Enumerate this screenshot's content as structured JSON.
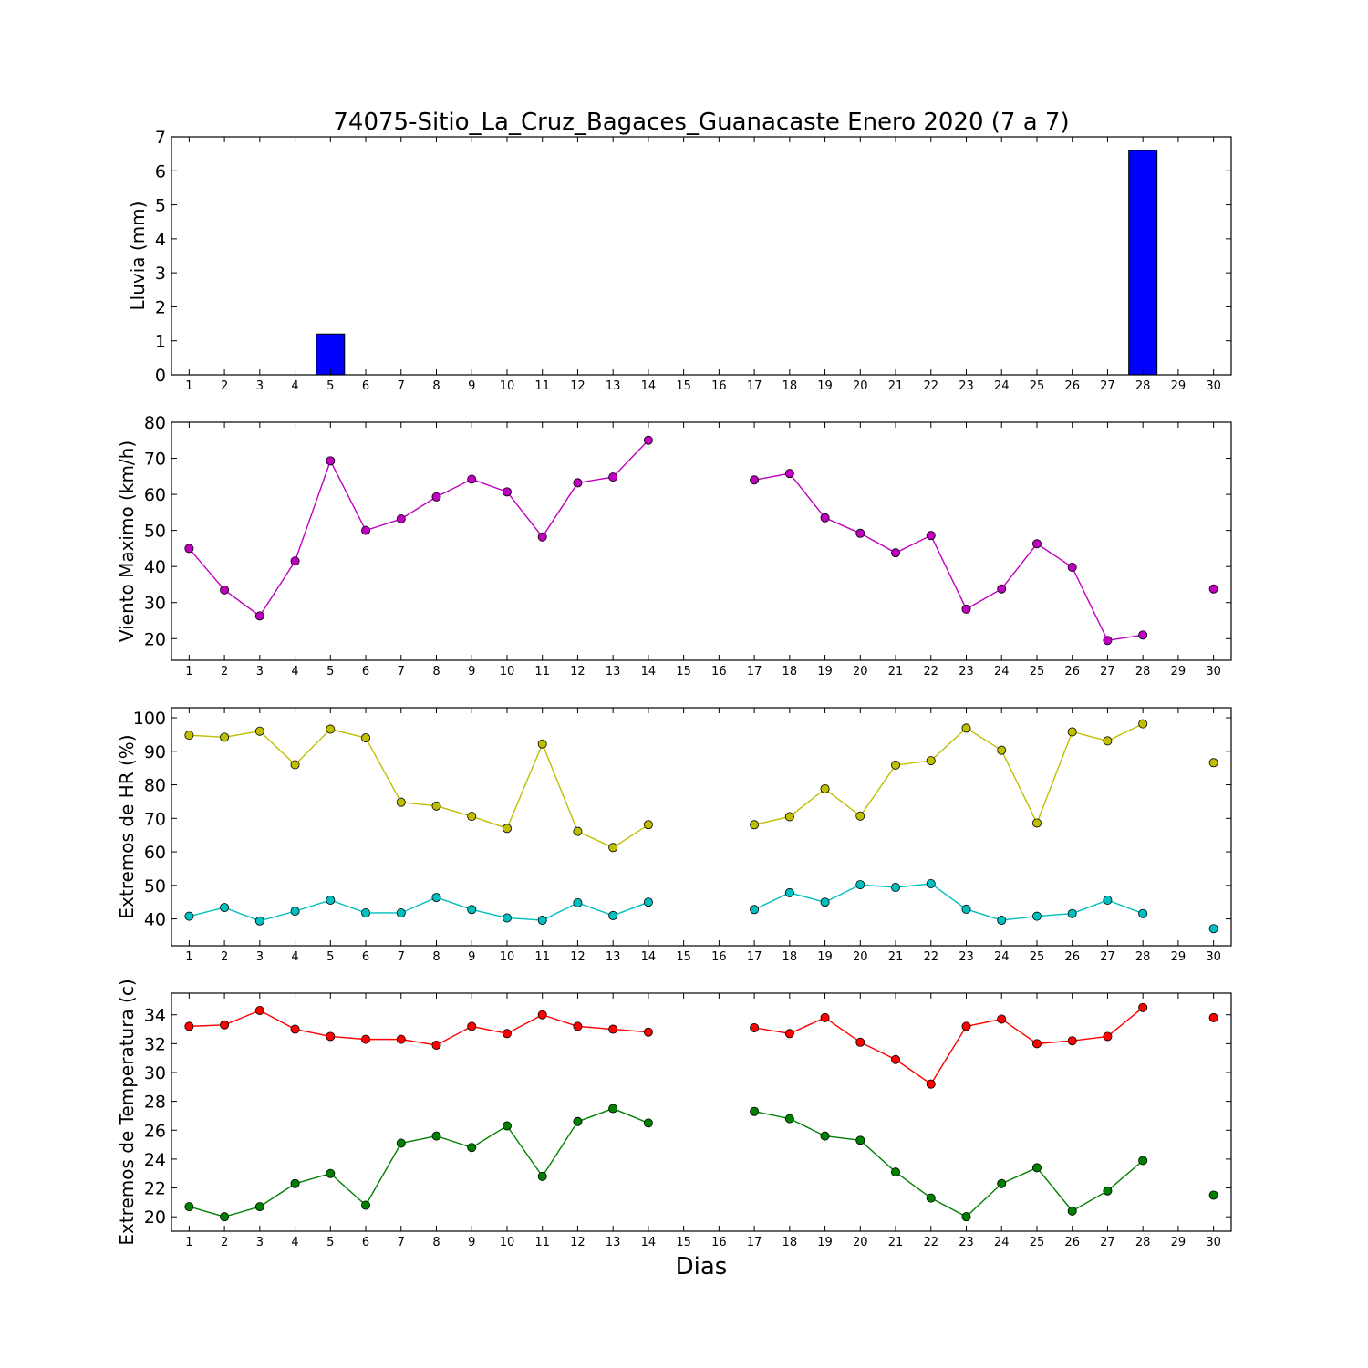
{
  "chart_data": {
    "title": "74075-Sitio_La_Cruz_Bagaces_Guanacaste Enero 2020  (7 a 7)",
    "xlabel": "Dias",
    "x_ticks": [
      1,
      2,
      3,
      4,
      5,
      6,
      7,
      8,
      9,
      10,
      11,
      12,
      13,
      14,
      15,
      16,
      17,
      18,
      19,
      20,
      21,
      22,
      23,
      24,
      25,
      26,
      27,
      28,
      29,
      30
    ],
    "xlim": [
      0.5,
      30.5
    ],
    "panels": [
      {
        "type": "bar",
        "ylabel": "Lluvia (mm)",
        "ylim": [
          0,
          7
        ],
        "yticks": [
          0,
          1,
          2,
          3,
          4,
          5,
          6,
          7
        ],
        "series": [
          {
            "color": "#0000ff",
            "x": [
              1,
              2,
              3,
              4,
              5,
              6,
              7,
              8,
              9,
              10,
              11,
              12,
              13,
              14,
              17,
              18,
              19,
              20,
              21,
              22,
              23,
              24,
              25,
              26,
              27,
              28,
              30
            ],
            "values": [
              0,
              0,
              0,
              0,
              1.2,
              0,
              0,
              0,
              0,
              0,
              0,
              0,
              0,
              0,
              0,
              0,
              0,
              0,
              0,
              0,
              0,
              0,
              0,
              0,
              0,
              6.6,
              0
            ]
          }
        ]
      },
      {
        "type": "line",
        "ylabel": "Viento Maximo (km/h)",
        "ylim": [
          14,
          80
        ],
        "yticks": [
          20,
          30,
          40,
          50,
          60,
          70,
          80
        ],
        "series": [
          {
            "color": "#bf00bf",
            "x": [
              1,
              2,
              3,
              4,
              5,
              6,
              7,
              8,
              9,
              10,
              11,
              12,
              13,
              14,
              15,
              16,
              17,
              18,
              19,
              20,
              21,
              22,
              23,
              24,
              25,
              26,
              27,
              28,
              29,
              30
            ],
            "values": [
              45,
              33.5,
              26.3,
              41.5,
              69.3,
              50,
              53.2,
              59.3,
              64.2,
              60.7,
              48.2,
              63.2,
              64.8,
              75,
              null,
              null,
              64,
              65.8,
              53.5,
              49.2,
              43.8,
              48.6,
              28.2,
              33.8,
              46.3,
              39.8,
              19.5,
              21,
              null,
              33.8
            ]
          }
        ]
      },
      {
        "type": "line",
        "ylabel": "Extremos de HR (%)",
        "ylim": [
          32,
          103
        ],
        "yticks": [
          40,
          50,
          60,
          70,
          80,
          90,
          100
        ],
        "series": [
          {
            "color": "#bfbf00",
            "x": [
              1,
              2,
              3,
              4,
              5,
              6,
              7,
              8,
              9,
              10,
              11,
              12,
              13,
              14,
              15,
              16,
              17,
              18,
              19,
              20,
              21,
              22,
              23,
              24,
              25,
              26,
              27,
              28,
              29,
              30
            ],
            "values": [
              94.8,
              94.2,
              96,
              86,
              96.6,
              94,
              74.8,
              73.7,
              70.6,
              67,
              92.2,
              66.1,
              61.3,
              68.1,
              null,
              null,
              68.1,
              70.5,
              78.8,
              70.7,
              85.9,
              87.2,
              96.9,
              90.3,
              68.6,
              95.8,
              93.1,
              98.2,
              null,
              86.6
            ]
          },
          {
            "color": "#00bfbf",
            "x": [
              1,
              2,
              3,
              4,
              5,
              6,
              7,
              8,
              9,
              10,
              11,
              12,
              13,
              14,
              15,
              16,
              17,
              18,
              19,
              20,
              21,
              22,
              23,
              24,
              25,
              26,
              27,
              28,
              29,
              30
            ],
            "values": [
              40.8,
              43.4,
              39.4,
              42.3,
              45.6,
              41.8,
              41.8,
              46.4,
              42.8,
              40.3,
              39.6,
              44.8,
              41,
              45,
              null,
              null,
              42.8,
              47.8,
              45,
              50.2,
              49.4,
              50.5,
              42.9,
              39.6,
              40.8,
              41.6,
              45.6,
              41.6,
              null,
              37.1
            ]
          }
        ]
      },
      {
        "type": "line",
        "ylabel": "Extremos de Temperatura (c)",
        "ylim": [
          19,
          35.5
        ],
        "yticks": [
          20,
          22,
          24,
          26,
          28,
          30,
          32,
          34
        ],
        "series": [
          {
            "color": "#ff0000",
            "x": [
              1,
              2,
              3,
              4,
              5,
              6,
              7,
              8,
              9,
              10,
              11,
              12,
              13,
              14,
              15,
              16,
              17,
              18,
              19,
              20,
              21,
              22,
              23,
              24,
              25,
              26,
              27,
              28,
              29,
              30
            ],
            "values": [
              33.2,
              33.3,
              34.3,
              33,
              32.5,
              32.3,
              32.3,
              31.9,
              33.2,
              32.7,
              34,
              33.2,
              33,
              32.8,
              null,
              null,
              33.1,
              32.7,
              33.8,
              32.1,
              30.9,
              29.2,
              33.2,
              33.7,
              32,
              32.2,
              32.5,
              34.5,
              null,
              33.8
            ]
          },
          {
            "color": "#008000",
            "x": [
              1,
              2,
              3,
              4,
              5,
              6,
              7,
              8,
              9,
              10,
              11,
              12,
              13,
              14,
              15,
              16,
              17,
              18,
              19,
              20,
              21,
              22,
              23,
              24,
              25,
              26,
              27,
              28,
              29,
              30
            ],
            "values": [
              20.7,
              20,
              20.7,
              22.3,
              23,
              20.8,
              25.1,
              25.6,
              24.8,
              26.3,
              22.8,
              26.6,
              27.5,
              26.5,
              null,
              null,
              27.3,
              26.8,
              25.6,
              25.3,
              23.1,
              21.3,
              20,
              22.3,
              23.4,
              20.4,
              21.8,
              23.9,
              null,
              21.5
            ]
          }
        ]
      }
    ]
  }
}
